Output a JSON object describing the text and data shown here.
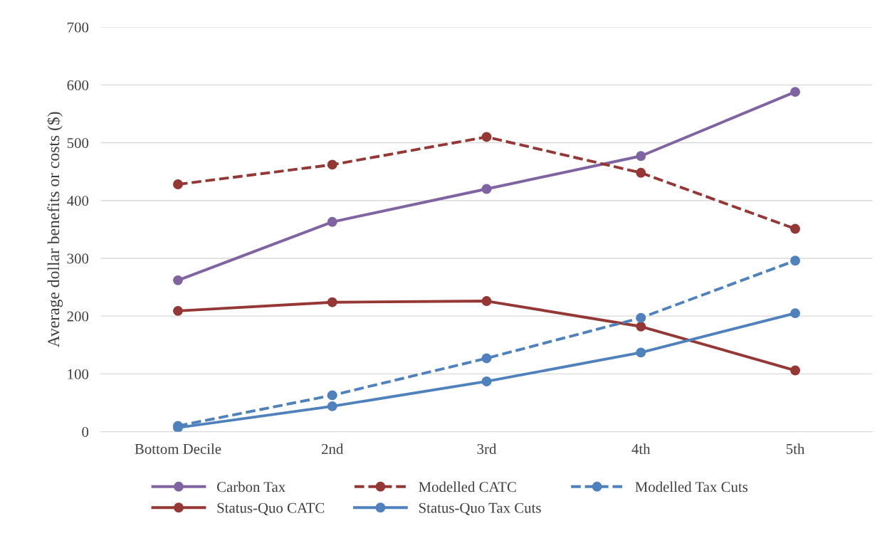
{
  "chart_data": {
    "type": "line",
    "ylabel": "Average dollar benefits or costs ($)",
    "categories": [
      "Bottom Decile",
      "2nd",
      "3rd",
      "4th",
      "5th"
    ],
    "ylim": [
      0,
      700
    ],
    "yticks": [
      0,
      100,
      200,
      300,
      400,
      500,
      600,
      700
    ],
    "grid": "y",
    "legend": "bottom",
    "marker": "circle",
    "series": [
      {
        "name": "Carbon Tax",
        "color": "#8064a2",
        "values": [
          262,
          363,
          420,
          477,
          588
        ]
      },
      {
        "name": "Status-Quo CATC",
        "color": "#953735",
        "values": [
          209,
          224,
          226,
          182,
          106
        ]
      },
      {
        "name": "Modelled CATC",
        "color": "#953735",
        "line_style": "dashed",
        "values": [
          428,
          462,
          510,
          448,
          351
        ]
      },
      {
        "name": "Status-Quo Tax Cuts",
        "color": "#4f81bd",
        "values": [
          7,
          44,
          87,
          137,
          205
        ]
      },
      {
        "name": "Modelled Tax Cuts",
        "color": "#4f81bd",
        "line_style": "dashed",
        "values": [
          10,
          63,
          127,
          197,
          296
        ]
      }
    ]
  }
}
